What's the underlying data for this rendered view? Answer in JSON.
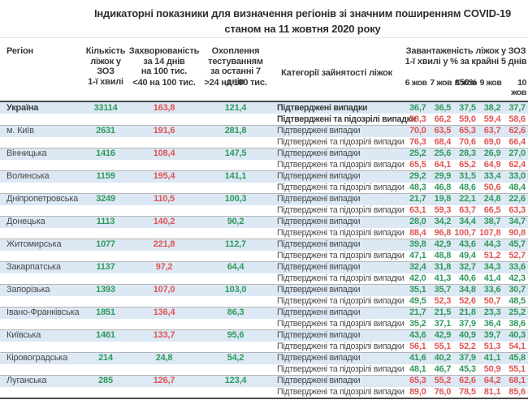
{
  "title": {
    "line1": "Індикаторні показники для визначення регіонів зі значним поширенням COVID-19",
    "line2": "станом на 11 жовтня 2020 року"
  },
  "header": {
    "region": "Регіон",
    "beds": "Кількість\nліжок у ЗОЗ\n1-ї хвилі",
    "incidence": "Захворюваність\nза 14 днів\nна 100 тис.",
    "coverage": "Охоплення\nтестуванням\nза останні 7 днів",
    "category": "Категорії зайнятості ліжок",
    "occupancy": "Завантаженість ліжок у ЗОЗ\n1-ї хвилі у % за крайні 5 днів",
    "threshold_label": "≤50%",
    "incidence_sub": "<40 на 100 тис.",
    "coverage_sub": ">24 на 100 тис.",
    "days": [
      "6 жов",
      "7 жов",
      "8 жов",
      "9 жов",
      "10 жов"
    ]
  },
  "row_labels": {
    "confirmed": "Підтверджені випадки",
    "confirmed_suspected": "Підтверджені та підозрілі випадки"
  },
  "colors": {
    "green": "#2f9a5c",
    "red": "#e05555",
    "row_highlight": "#dce8f4",
    "header_text": "#383838",
    "body_text": "#4a4a4a"
  },
  "thresholds": {
    "incidence_red_at": 40,
    "occupancy_red_at": 50
  },
  "regions": [
    {
      "name": "Україна",
      "bold": true,
      "beds": "33114",
      "incidence": "163,8",
      "coverage": "121,4",
      "confirmed": [
        "36,7",
        "36,5",
        "37,5",
        "38,2",
        "37,7"
      ],
      "confirmed_suspected": [
        "58,3",
        "66,2",
        "59,0",
        "59,4",
        "58,6"
      ]
    },
    {
      "name": "м. Київ",
      "bold": false,
      "beds": "2631",
      "incidence": "191,6",
      "coverage": "281,8",
      "confirmed": [
        "70,0",
        "63,5",
        "65,3",
        "63,7",
        "62,6"
      ],
      "confirmed_suspected": [
        "76,3",
        "68,4",
        "70,6",
        "69,0",
        "66,4"
      ]
    },
    {
      "name": "Вінницька",
      "bold": false,
      "beds": "1416",
      "incidence": "108,4",
      "coverage": "147,5",
      "confirmed": [
        "25,2",
        "25,6",
        "28,3",
        "26,9",
        "27,0"
      ],
      "confirmed_suspected": [
        "65,5",
        "64,1",
        "65,2",
        "64,9",
        "62,4"
      ]
    },
    {
      "name": "Волинська",
      "bold": false,
      "beds": "1159",
      "incidence": "195,4",
      "coverage": "141,1",
      "confirmed": [
        "29,2",
        "29,9",
        "31,5",
        "33,4",
        "33,0"
      ],
      "confirmed_suspected": [
        "48,3",
        "46,8",
        "48,6",
        "50,6",
        "48,4"
      ]
    },
    {
      "name": "Дніпропетровська",
      "bold": false,
      "beds": "3249",
      "incidence": "110,5",
      "coverage": "100,3",
      "confirmed": [
        "21,7",
        "19,8",
        "22,1",
        "24,8",
        "22,6"
      ],
      "confirmed_suspected": [
        "63,1",
        "59,3",
        "63,7",
        "66,5",
        "63,3"
      ]
    },
    {
      "name": "Донецька",
      "bold": false,
      "beds": "1113",
      "incidence": "140,2",
      "coverage": "90,2",
      "confirmed": [
        "28,0",
        "34,2",
        "34,4",
        "38,7",
        "34,7"
      ],
      "confirmed_suspected": [
        "88,4",
        "96,8",
        "100,7",
        "107,8",
        "90,8"
      ]
    },
    {
      "name": "Житомирська",
      "bold": false,
      "beds": "1077",
      "incidence": "221,8",
      "coverage": "112,7",
      "confirmed": [
        "39,8",
        "42,9",
        "43,6",
        "44,3",
        "45,7"
      ],
      "confirmed_suspected": [
        "47,1",
        "48,8",
        "49,4",
        "51,2",
        "52,7"
      ]
    },
    {
      "name": "Закарпатська",
      "bold": false,
      "beds": "1137",
      "incidence": "97,2",
      "coverage": "64,4",
      "confirmed": [
        "32,4",
        "31,8",
        "32,7",
        "34,3",
        "33,6"
      ],
      "confirmed_suspected": [
        "42,0",
        "41,3",
        "40,6",
        "41,4",
        "42,3"
      ]
    },
    {
      "name": "Запорізька",
      "bold": false,
      "beds": "1393",
      "incidence": "107,0",
      "coverage": "103,0",
      "confirmed": [
        "35,1",
        "35,7",
        "34,8",
        "33,6",
        "30,7"
      ],
      "confirmed_suspected": [
        "49,5",
        "52,3",
        "52,6",
        "50,7",
        "48,5"
      ]
    },
    {
      "name": "Івано-Франківська",
      "bold": false,
      "beds": "1851",
      "incidence": "136,4",
      "coverage": "86,3",
      "confirmed": [
        "21,7",
        "21,5",
        "21,8",
        "23,3",
        "25,2"
      ],
      "confirmed_suspected": [
        "35,2",
        "37,1",
        "37,9",
        "36,4",
        "38,6"
      ]
    },
    {
      "name": "Київська",
      "bold": false,
      "beds": "1461",
      "incidence": "133,7",
      "coverage": "95,6",
      "confirmed": [
        "43,6",
        "42,9",
        "40,9",
        "39,7",
        "40,3"
      ],
      "confirmed_suspected": [
        "56,1",
        "55,1",
        "52,2",
        "51,3",
        "54,1"
      ]
    },
    {
      "name": "Кіровоградська",
      "bold": false,
      "beds": "214",
      "incidence": "24,8",
      "coverage": "54,2",
      "confirmed": [
        "41,6",
        "40,2",
        "37,9",
        "41,1",
        "45,8"
      ],
      "confirmed_suspected": [
        "48,1",
        "46,7",
        "45,3",
        "50,9",
        "55,1"
      ]
    },
    {
      "name": "Луганська",
      "bold": false,
      "beds": "285",
      "incidence": "126,7",
      "coverage": "123,4",
      "confirmed": [
        "65,3",
        "55,2",
        "62,6",
        "64,2",
        "68,1"
      ],
      "confirmed_suspected": [
        "89,0",
        "76,0",
        "78,5",
        "81,1",
        "85,6"
      ]
    }
  ]
}
